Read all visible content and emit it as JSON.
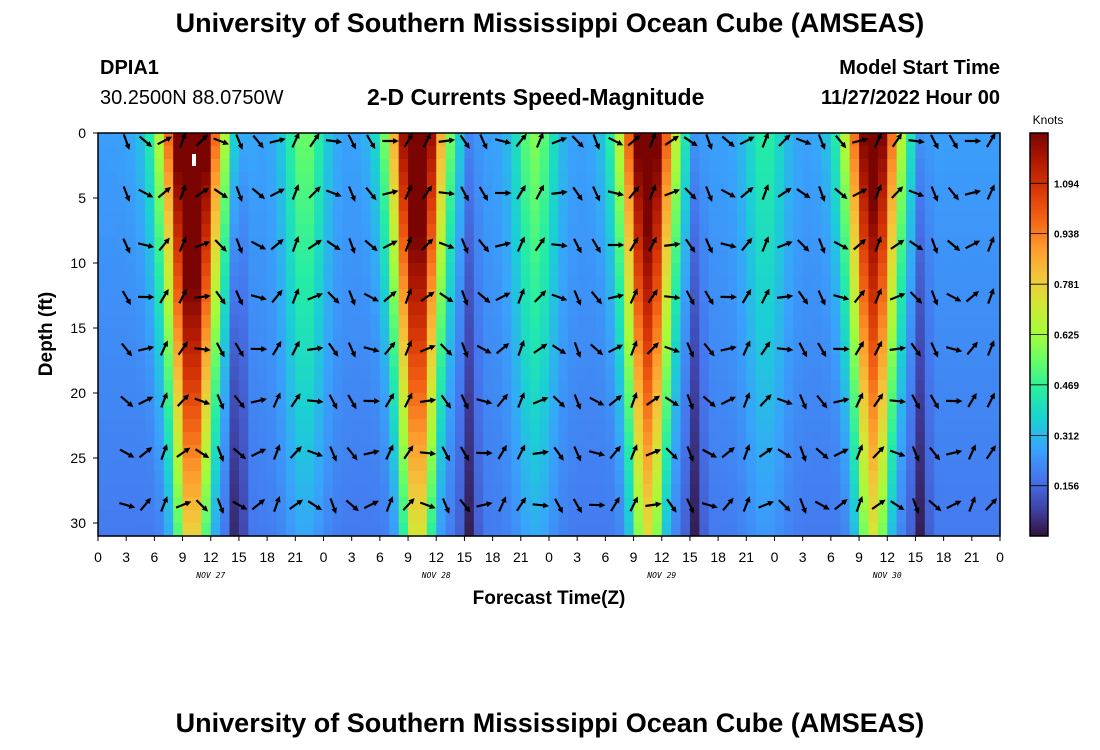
{
  "header": {
    "title_top": "University of Southern Mississippi Ocean Cube (AMSEAS)",
    "station_id": "DPIA1",
    "station_coords": "30.2500N  88.0750W",
    "plot_title": "2-D Currents Speed-Magnitude",
    "model_start_label": "Model Start Time",
    "model_start_value": "11/27/2022 Hour 00",
    "title_bottom": "University of Southern Mississippi Ocean Cube (AMSEAS)"
  },
  "chart_data": {
    "type": "heatmap",
    "title": "2-D Currents Speed-Magnitude",
    "xlabel": "Forecast Time(Z)",
    "ylabel": "Depth (ft)",
    "x_hours_range": [
      0,
      96
    ],
    "x_tick_labels": [
      "0",
      "3",
      "6",
      "9",
      "12",
      "15",
      "18",
      "21",
      "0",
      "3",
      "6",
      "9",
      "12",
      "15",
      "18",
      "21",
      "0",
      "3",
      "6",
      "9",
      "12",
      "15",
      "18",
      "21",
      "0",
      "3",
      "6",
      "9",
      "12",
      "15",
      "18",
      "21",
      "0"
    ],
    "day_labels": [
      {
        "hour": 12,
        "label": "NOV 27"
      },
      {
        "hour": 36,
        "label": "NOV 28"
      },
      {
        "hour": 60,
        "label": "NOV 29"
      },
      {
        "hour": 84,
        "label": "NOV 30"
      }
    ],
    "y_range_ft": [
      0,
      31
    ],
    "y_ticks": [
      0,
      5,
      10,
      15,
      20,
      25,
      30
    ],
    "colorbar": {
      "unit": "Knots",
      "min": 0,
      "max": 1.25,
      "tick_values": [
        0.156,
        0.312,
        0.469,
        0.625,
        0.781,
        0.938,
        1.094
      ],
      "tick_labels": [
        "0.156",
        "0.312",
        "0.469",
        "0.625",
        "0.781",
        "0.938",
        "1.094"
      ],
      "colors": [
        "#30123b",
        "#4145ab",
        "#4675ed",
        "#39a2fc",
        "#1bcfd4",
        "#24eca6",
        "#61fc6c",
        "#a4fc3b",
        "#d1e834",
        "#f3c63a",
        "#fe9b2d",
        "#f36315",
        "#d93806",
        "#b11901",
        "#7a0402"
      ]
    },
    "speed_peaks": [
      {
        "hour": 10.0,
        "peak_knots": 1.25,
        "half_width_h": 2.8
      },
      {
        "hour": 34.0,
        "peak_knots": 1.15,
        "half_width_h": 2.6
      },
      {
        "hour": 58.5,
        "peak_knots": 1.1,
        "half_width_h": 2.6
      },
      {
        "hour": 82.5,
        "peak_knots": 1.05,
        "half_width_h": 2.6
      }
    ],
    "arrow_depths_ft": [
      0,
      4,
      8,
      12,
      16,
      20,
      24,
      28
    ],
    "arrow_every_hours": 2
  }
}
